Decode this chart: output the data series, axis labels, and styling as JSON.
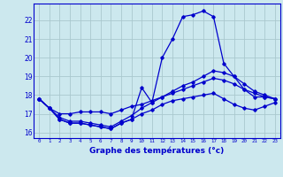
{
  "xlabel": "Graphe des températures (°c)",
  "background_color": "#cce8ee",
  "grid_color": "#aac8ce",
  "line_color": "#0000cc",
  "hours": [
    0,
    1,
    2,
    3,
    4,
    5,
    6,
    7,
    8,
    9,
    10,
    11,
    12,
    13,
    14,
    15,
    16,
    17,
    18,
    19,
    20,
    21,
    22,
    23
  ],
  "temp_line1": [
    17.8,
    17.3,
    16.7,
    16.5,
    16.5,
    16.4,
    16.3,
    16.2,
    16.5,
    16.7,
    18.4,
    17.6,
    20.0,
    21.0,
    22.2,
    22.3,
    22.5,
    22.2,
    19.7,
    19.0,
    18.3,
    17.9,
    17.9,
    17.8
  ],
  "temp_line2": [
    17.8,
    17.3,
    16.8,
    16.6,
    16.6,
    16.5,
    16.4,
    16.3,
    16.6,
    16.9,
    17.3,
    17.6,
    17.9,
    18.2,
    18.5,
    18.7,
    19.0,
    19.3,
    19.2,
    19.0,
    18.6,
    18.2,
    18.0,
    17.8
  ],
  "temp_line3": [
    17.8,
    17.3,
    17.0,
    17.0,
    17.1,
    17.1,
    17.1,
    17.0,
    17.2,
    17.4,
    17.5,
    17.7,
    17.9,
    18.1,
    18.3,
    18.5,
    18.7,
    18.9,
    18.8,
    18.6,
    18.3,
    18.1,
    17.9,
    17.8
  ],
  "temp_line4": [
    17.8,
    17.3,
    16.7,
    16.5,
    16.5,
    16.4,
    16.3,
    16.2,
    16.5,
    16.7,
    17.0,
    17.2,
    17.5,
    17.7,
    17.8,
    17.9,
    18.0,
    18.1,
    17.8,
    17.5,
    17.3,
    17.2,
    17.4,
    17.6
  ],
  "ylim": [
    15.7,
    22.9
  ],
  "yticks": [
    16,
    17,
    18,
    19,
    20,
    21,
    22
  ],
  "xlim": [
    -0.5,
    23.5
  ],
  "xticks": [
    0,
    1,
    2,
    3,
    4,
    5,
    6,
    7,
    8,
    9,
    10,
    11,
    12,
    13,
    14,
    15,
    16,
    17,
    18,
    19,
    20,
    21,
    22,
    23
  ]
}
